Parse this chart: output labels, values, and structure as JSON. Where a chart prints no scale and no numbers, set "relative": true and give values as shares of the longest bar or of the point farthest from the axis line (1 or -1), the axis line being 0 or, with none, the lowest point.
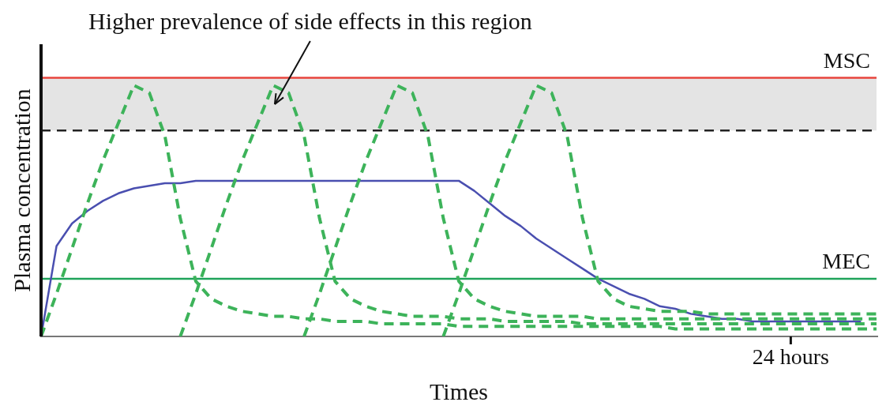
{
  "chart_data": {
    "type": "line",
    "relative": true,
    "xlabel": "Times",
    "ylabel": "Plasma concentration",
    "legend": false,
    "marker": "none",
    "categories": [
      null,
      null,
      null,
      null,
      null,
      null,
      null,
      null,
      null,
      null,
      null,
      null,
      null,
      null,
      null,
      null,
      null,
      null,
      null,
      null,
      null,
      null,
      null,
      null,
      null,
      null,
      null,
      null,
      null,
      null,
      null,
      null,
      null,
      null,
      null,
      null,
      null,
      null,
      null,
      null,
      null,
      null,
      null,
      null,
      null,
      null,
      null,
      null,
      null,
      null,
      null,
      null,
      null,
      null,
      null
    ],
    "annotations": [
      "24 hours"
    ],
    "series": [
      {
        "color": "#3db35a",
        "line_style": "dashed",
        "values": [
          0,
          0.17,
          0.35,
          0.53,
          0.7,
          0.85,
          1,
          0.97,
          0.8,
          0.47,
          0.22,
          0.15,
          0.12,
          0.1,
          0.09,
          0.08,
          0.08,
          0.07,
          0.07,
          0.06,
          0.06,
          0.06,
          0.05,
          0.05,
          0.05,
          0.05,
          0.05,
          0.04,
          0.04,
          0.04,
          0.04,
          0.04,
          0.04,
          0.04,
          0.04,
          0.04,
          0.04,
          0.04,
          0.04,
          0.04,
          0.04,
          0.03,
          0.03,
          0.03,
          0.03,
          0.03,
          0.03,
          0.03,
          0.03,
          0.03,
          0.03,
          0.03,
          0.03,
          0.03,
          0.03
        ]
      },
      {
        "color": "#3db35a",
        "line_style": "dashed",
        "values": [
          null,
          null,
          null,
          null,
          null,
          null,
          null,
          null,
          null,
          0,
          0.17,
          0.35,
          0.53,
          0.7,
          0.85,
          1,
          0.97,
          0.8,
          0.47,
          0.22,
          0.15,
          0.12,
          0.1,
          0.09,
          0.08,
          0.08,
          0.08,
          0.07,
          0.07,
          0.07,
          0.06,
          0.06,
          0.06,
          0.06,
          0.06,
          0.05,
          0.05,
          0.05,
          0.05,
          0.05,
          0.05,
          0.05,
          0.05,
          0.05,
          0.05,
          0.05,
          0.05,
          0.05,
          0.05,
          0.05,
          0.05,
          0.05,
          0.05,
          0.05,
          0.05
        ]
      },
      {
        "color": "#3db35a",
        "line_style": "dashed",
        "values": [
          null,
          null,
          null,
          null,
          null,
          null,
          null,
          null,
          null,
          null,
          null,
          null,
          null,
          null,
          null,
          null,
          null,
          0,
          0.17,
          0.35,
          0.53,
          0.7,
          0.85,
          1,
          0.97,
          0.8,
          0.47,
          0.22,
          0.15,
          0.12,
          0.1,
          0.09,
          0.08,
          0.08,
          0.08,
          0.08,
          0.07,
          0.07,
          0.07,
          0.07,
          0.07,
          0.07,
          0.07,
          0.07,
          0.07,
          0.07,
          0.07,
          0.07,
          0.07,
          0.07,
          0.07,
          0.07,
          0.07,
          0.07,
          0.07
        ]
      },
      {
        "color": "#3db35a",
        "line_style": "dashed",
        "values": [
          null,
          null,
          null,
          null,
          null,
          null,
          null,
          null,
          null,
          null,
          null,
          null,
          null,
          null,
          null,
          null,
          null,
          null,
          null,
          null,
          null,
          null,
          null,
          null,
          null,
          null,
          0,
          0.17,
          0.35,
          0.53,
          0.7,
          0.85,
          1,
          0.97,
          0.8,
          0.47,
          0.22,
          0.15,
          0.12,
          0.11,
          0.1,
          0.1,
          0.1,
          0.09,
          0.09,
          0.09,
          0.09,
          0.09,
          0.09,
          0.09,
          0.09,
          0.09,
          0.09,
          0.09,
          0.09
        ]
      },
      {
        "color": "#4a4fb0",
        "line_style": "solid",
        "values": [
          0,
          0.36,
          0.45,
          0.5,
          0.54,
          0.57,
          0.59,
          0.6,
          0.61,
          0.61,
          0.62,
          0.62,
          0.62,
          0.62,
          0.62,
          0.62,
          0.62,
          0.62,
          0.62,
          0.62,
          0.62,
          0.62,
          0.62,
          0.62,
          0.62,
          0.62,
          0.62,
          0.62,
          0.58,
          0.53,
          0.48,
          0.44,
          0.39,
          0.35,
          0.31,
          0.27,
          0.23,
          0.2,
          0.17,
          0.15,
          0.12,
          0.11,
          0.09,
          0.08,
          0.07,
          0.07,
          0.06,
          0.06,
          0.06,
          0.06,
          0.06,
          0.06,
          0.06,
          0.06,
          null
        ]
      }
    ],
    "ref_lines": [
      {
        "axis": "y",
        "value": 1.03,
        "label": "MSC",
        "color": "#e8453c",
        "line_style": "solid"
      },
      {
        "axis": "y",
        "value": 0.82,
        "label": null,
        "color": "#222222",
        "line_style": "dashed"
      },
      {
        "axis": "y",
        "value": 0.23,
        "label": "MEC",
        "color": "#1fa35a",
        "line_style": "solid"
      }
    ],
    "bands": [
      {
        "axis": "y",
        "from": 0.82,
        "to": 1.03,
        "label": "Higher prevalence of side effects in this region",
        "color": "#e4e4e4"
      }
    ]
  }
}
